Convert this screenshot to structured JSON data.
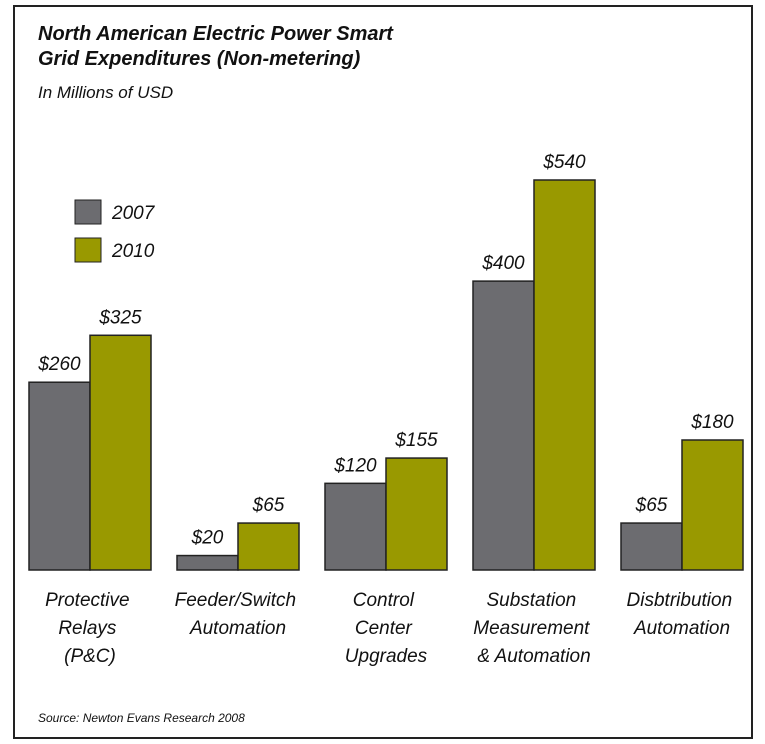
{
  "chart_data": {
    "type": "bar",
    "title": "North American Electric Power Smart\nGrid Expenditures (Non-metering)",
    "subtitle": "In Millions of USD",
    "source": "Source:  Newton Evans Research 2008",
    "categories": [
      "Protective\nRelays\n(P&C)",
      "Feeder/Switch\nAutomation",
      "Control\nCenter\nUpgrades",
      "Substation\nMeasurement\n& Automation",
      "Disbtribution\nAutomation"
    ],
    "series": [
      {
        "name": "2007",
        "color": "#6c6c70",
        "values": [
          260,
          20,
          120,
          400,
          65
        ],
        "value_labels": [
          "$260",
          "$20",
          "$120",
          "$400",
          "$65"
        ]
      },
      {
        "name": "2010",
        "color": "#999900",
        "values": [
          325,
          65,
          155,
          540,
          180
        ],
        "value_labels": [
          "$325",
          "$65",
          "$155",
          "$540",
          "$180"
        ]
      }
    ],
    "legend": "upper left"
  }
}
